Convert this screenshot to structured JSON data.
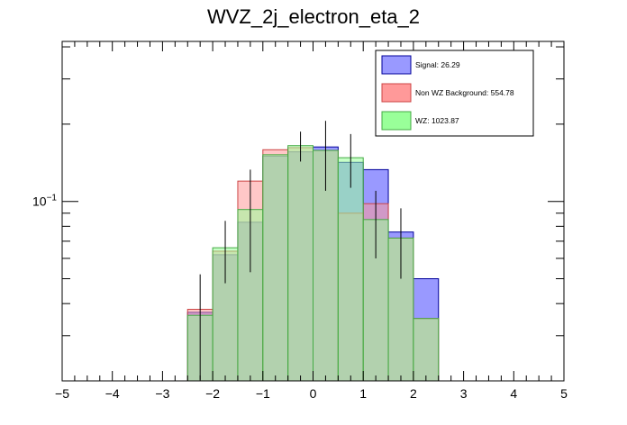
{
  "chart_data": {
    "type": "bar",
    "title": "WVZ_2j_electron_eta_2",
    "xlabel": "",
    "ylabel": "",
    "xlim": [
      -5,
      5
    ],
    "ylim": [
      0.02,
      0.42
    ],
    "yscale": "log",
    "x_ticks": [
      "−5",
      "−4",
      "−3",
      "−2",
      "−1",
      "0",
      "1",
      "2",
      "3",
      "4",
      "5"
    ],
    "y_tick_label_base": "10",
    "y_tick_label_exp": "−1",
    "bin_edges": [
      -2.5,
      -2.0,
      -1.5,
      -1.0,
      -0.5,
      0.0,
      0.5,
      1.0,
      1.5,
      2.0,
      2.5
    ],
    "series": [
      {
        "name": "Signal",
        "legend": "Signal: 26.29",
        "fill": "#9999ff",
        "line": "#000099",
        "values": [
          0.037,
          0.062,
          0.083,
          0.15,
          0.156,
          0.163,
          0.142,
          0.133,
          0.076,
          0.05
        ],
        "errors": [
          0.0,
          0.0,
          0.0,
          0.0,
          0.0,
          0.0,
          0.0,
          0.0,
          0.0,
          0.0
        ]
      },
      {
        "name": "Non WZ Background",
        "legend": "Non WZ Background: 554.78",
        "fill": "#ff9999",
        "line": "#cc4444",
        "values": [
          0.038,
          0.064,
          0.12,
          0.159,
          0.162,
          0.158,
          0.09,
          0.098,
          0.072,
          0.035
        ],
        "errors": [
          0.0,
          0.0,
          0.0,
          0.0,
          0.0,
          0.0,
          0.0,
          0.0,
          0.0,
          0.0
        ]
      },
      {
        "name": "WZ",
        "legend": "WZ: 1023.87",
        "fill": "#99ff99",
        "line": "#44aa44",
        "values": [
          0.036,
          0.066,
          0.093,
          0.152,
          0.165,
          0.158,
          0.148,
          0.085,
          0.072,
          0.035
        ],
        "errors": [
          0.016,
          0.018,
          0.04,
          0.0,
          0.022,
          0.048,
          0.035,
          0.025,
          0.022,
          0.0
        ]
      }
    ]
  }
}
